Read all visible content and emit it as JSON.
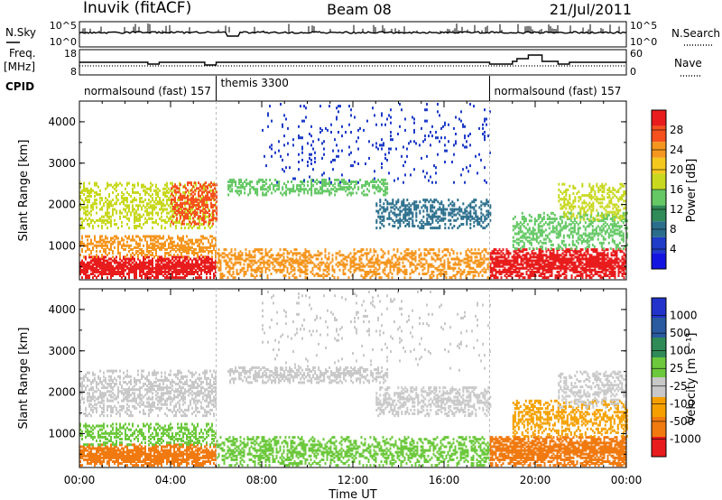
{
  "header": {
    "station": "Inuvik (fitACF)",
    "beam": "Beam 08",
    "date": "21/Jul/2011"
  },
  "summary_panels": {
    "nsky_label": "N.Sky",
    "nsky_ticks": [
      "10^5",
      "10^0"
    ],
    "nsearch_label": "N.Search",
    "nsearch_ticks": [
      "10^5",
      "10^0"
    ],
    "freq_label": "Freq.",
    "freq_unit": "[MHz]",
    "freq_ticks": [
      "18",
      "8"
    ],
    "nave_label": "Nave",
    "nave_ticks": [
      "60",
      "0"
    ],
    "cpid_label": "CPID",
    "cpid_segments": [
      {
        "label": "normalsound (fast) 157",
        "start_hour": 0,
        "end_hour": 6
      },
      {
        "label": "themis 3300",
        "start_hour": 6,
        "end_hour": 18
      },
      {
        "label": "normalsound (fast) 157",
        "start_hour": 18,
        "end_hour": 24
      }
    ]
  },
  "colorbars": {
    "power": {
      "title": "Power [dB]",
      "tick_labels": [
        "28",
        "24",
        "20",
        "16",
        "12",
        "8",
        "4"
      ],
      "colors": [
        "#e81c1c",
        "#f5501e",
        "#f5961e",
        "#f5c81e",
        "#c8d81e",
        "#64c864",
        "#2e8b57",
        "#2a6e8c",
        "#1e3cc8",
        "#1414e0"
      ]
    },
    "velocity": {
      "title": "Velocity [m s⁻¹]",
      "tick_labels": [
        "1000",
        "500",
        "100",
        "25",
        "-25",
        "-100",
        "-500",
        "-1000"
      ],
      "colors": [
        "#2233cc",
        "#2a5aa0",
        "#2e8b57",
        "#6cc83c",
        "#c8c8c8",
        "#f5a000",
        "#f07a10",
        "#e81c1c"
      ]
    }
  },
  "chart_data": [
    {
      "type": "heatmap",
      "name": "power",
      "ylabel": "Slant Range [km]",
      "ylim": [
        180,
        4500
      ],
      "yticks": [
        "4000",
        "3000",
        "2000",
        "1000"
      ],
      "xlim_hours": [
        0,
        24
      ],
      "scatter_bands": [
        {
          "start_hour": 0.0,
          "end_hour": 6.0,
          "range_min": 200,
          "range_max": 700,
          "density": 0.9,
          "color": "#e81c1c"
        },
        {
          "start_hour": 0.0,
          "end_hour": 6.0,
          "range_min": 700,
          "range_max": 1200,
          "density": 0.55,
          "color": "#f5961e"
        },
        {
          "start_hour": 0.0,
          "end_hour": 6.0,
          "range_min": 1400,
          "range_max": 2500,
          "density": 0.45,
          "color": "#c8d81e"
        },
        {
          "start_hour": 4.0,
          "end_hour": 6.0,
          "range_min": 1500,
          "range_max": 2500,
          "density": 0.6,
          "color": "#f5501e"
        },
        {
          "start_hour": 6.0,
          "end_hour": 18.0,
          "range_min": 200,
          "range_max": 900,
          "density": 0.5,
          "color": "#f5961e"
        },
        {
          "start_hour": 6.5,
          "end_hour": 13.5,
          "range_min": 2200,
          "range_max": 2600,
          "density": 0.5,
          "color": "#64c864"
        },
        {
          "start_hour": 13.0,
          "end_hour": 18.0,
          "range_min": 1400,
          "range_max": 2100,
          "density": 0.45,
          "color": "#2a6e8c"
        },
        {
          "start_hour": 8.0,
          "end_hour": 18.0,
          "range_min": 2500,
          "range_max": 4400,
          "density": 0.06,
          "color": "#1e3cc8"
        },
        {
          "start_hour": 18.0,
          "end_hour": 24.0,
          "range_min": 200,
          "range_max": 900,
          "density": 0.85,
          "color": "#e81c1c"
        },
        {
          "start_hour": 19.0,
          "end_hour": 24.0,
          "range_min": 900,
          "range_max": 1800,
          "density": 0.45,
          "color": "#64c864"
        },
        {
          "start_hour": 21.0,
          "end_hour": 24.0,
          "range_min": 1600,
          "range_max": 2500,
          "density": 0.4,
          "color": "#c8d81e"
        }
      ]
    },
    {
      "type": "heatmap",
      "name": "velocity",
      "ylabel": "Slant Range [km]",
      "ylim": [
        180,
        4500
      ],
      "yticks": [
        "4000",
        "3000",
        "2000",
        "1000"
      ],
      "xlabel": "Time UT",
      "xticks": [
        "00:00",
        "04:00",
        "08:00",
        "12:00",
        "16:00",
        "20:00",
        "00:00"
      ],
      "xlim_hours": [
        0,
        24
      ],
      "scatter_bands": [
        {
          "start_hour": 0.0,
          "end_hour": 6.0,
          "range_min": 200,
          "range_max": 700,
          "density": 0.9,
          "color": "#f07a10"
        },
        {
          "start_hour": 0.0,
          "end_hour": 6.0,
          "range_min": 700,
          "range_max": 1200,
          "density": 0.5,
          "color": "#6cc83c"
        },
        {
          "start_hour": 0.0,
          "end_hour": 6.0,
          "range_min": 1400,
          "range_max": 2500,
          "density": 0.5,
          "color": "#c8c8c8"
        },
        {
          "start_hour": 6.0,
          "end_hour": 18.0,
          "range_min": 200,
          "range_max": 900,
          "density": 0.5,
          "color": "#6cc83c"
        },
        {
          "start_hour": 6.5,
          "end_hour": 13.5,
          "range_min": 2200,
          "range_max": 2600,
          "density": 0.6,
          "color": "#c8c8c8"
        },
        {
          "start_hour": 13.0,
          "end_hour": 18.0,
          "range_min": 1400,
          "range_max": 2100,
          "density": 0.5,
          "color": "#c8c8c8"
        },
        {
          "start_hour": 8.0,
          "end_hour": 18.0,
          "range_min": 2500,
          "range_max": 4400,
          "density": 0.05,
          "color": "#c8c8c8"
        },
        {
          "start_hour": 18.0,
          "end_hour": 24.0,
          "range_min": 200,
          "range_max": 900,
          "density": 0.85,
          "color": "#f07a10"
        },
        {
          "start_hour": 19.0,
          "end_hour": 24.0,
          "range_min": 900,
          "range_max": 1800,
          "density": 0.5,
          "color": "#f5a000"
        },
        {
          "start_hour": 21.0,
          "end_hour": 24.0,
          "range_min": 1600,
          "range_max": 2500,
          "density": 0.45,
          "color": "#c8c8c8"
        }
      ]
    }
  ]
}
